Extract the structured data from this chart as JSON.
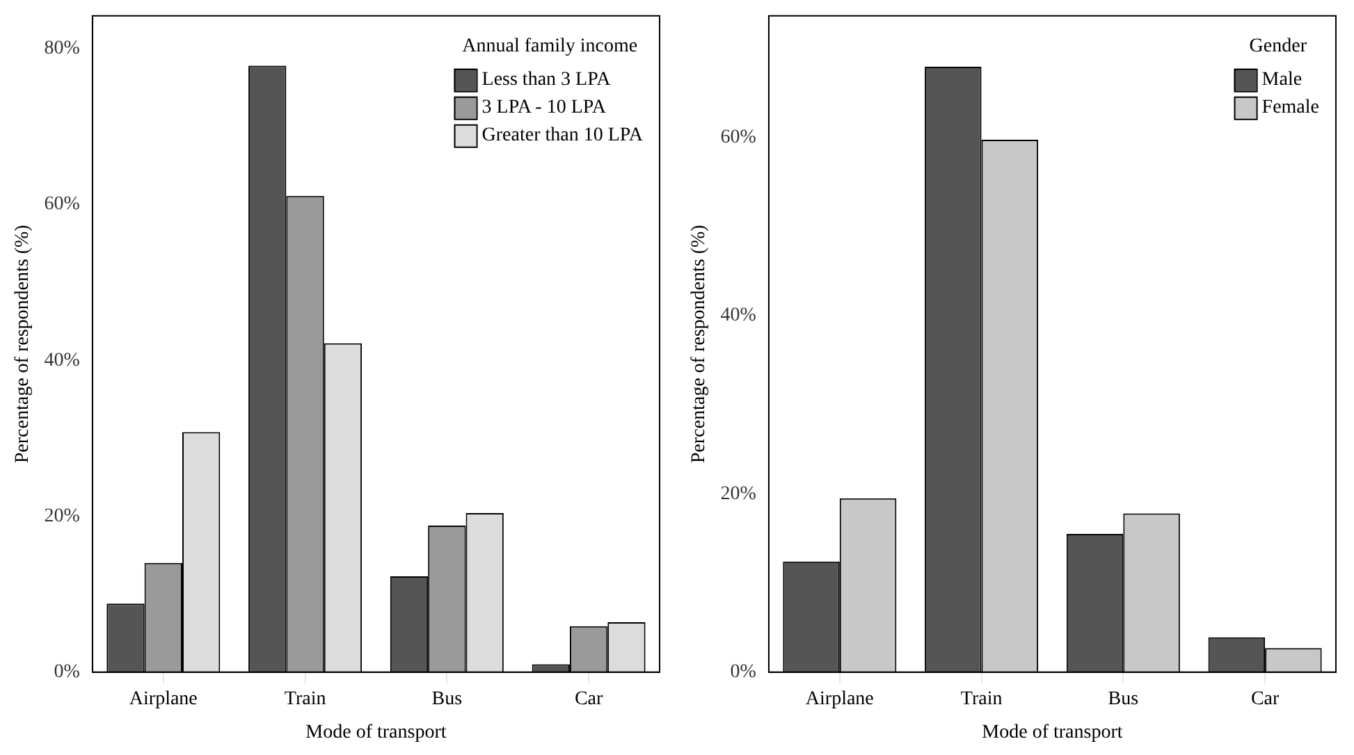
{
  "chart_data": [
    {
      "type": "bar",
      "xlabel": "Mode of transport",
      "ylabel": "Percentage of respondents (%)",
      "legend_title": "Annual family income",
      "categories": [
        "Airplane",
        "Train",
        "Bus",
        "Car"
      ],
      "series": [
        {
          "name": "Less than 3 LPA",
          "color": "#555555",
          "values": [
            8.8,
            77.8,
            12.3,
            1.0
          ]
        },
        {
          "name": "3 LPA - 10 LPA",
          "color": "#9a9a9a",
          "values": [
            14.0,
            61.1,
            18.8,
            5.9
          ]
        },
        {
          "name": "Greater than 10 LPA",
          "color": "#dcdcdc",
          "values": [
            30.8,
            42.2,
            20.4,
            6.4
          ]
        }
      ],
      "ylim": [
        0,
        84.2
      ],
      "yticks": [
        {
          "value": 0,
          "label": "0%"
        },
        {
          "value": 20,
          "label": "20%"
        },
        {
          "value": 40,
          "label": "40%"
        },
        {
          "value": 60,
          "label": "60%"
        },
        {
          "value": 80,
          "label": "80%"
        }
      ],
      "grid": false,
      "legend": "top right"
    },
    {
      "type": "bar",
      "xlabel": "Mode of transport",
      "ylabel": "Percentage of respondents (%)",
      "legend_title": "Gender",
      "categories": [
        "Airplane",
        "Train",
        "Bus",
        "Car"
      ],
      "series": [
        {
          "name": "Male",
          "color": "#555555",
          "values": [
            12.4,
            67.9,
            15.5,
            3.9
          ]
        },
        {
          "name": "Female",
          "color": "#c8c8c8",
          "values": [
            19.5,
            59.7,
            17.8,
            2.7
          ]
        }
      ],
      "ylim": [
        0,
        73.6
      ],
      "yticks": [
        {
          "value": 0,
          "label": "0%"
        },
        {
          "value": 20,
          "label": "20%"
        },
        {
          "value": 40,
          "label": "40%"
        },
        {
          "value": 60,
          "label": "60%"
        }
      ],
      "grid": false,
      "legend": "top right"
    }
  ]
}
